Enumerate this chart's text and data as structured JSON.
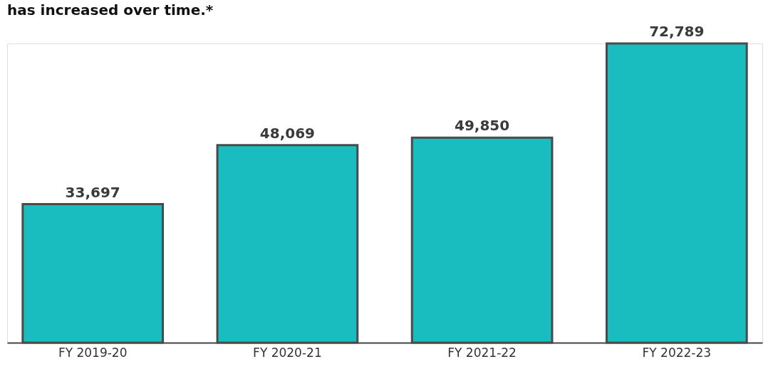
{
  "chart_data": {
    "type": "bar",
    "title": "has increased over time.*",
    "categories": [
      "FY 2019-20",
      "FY 2020-21",
      "FY 2021-22",
      "FY 2022-23"
    ],
    "values": [
      33697,
      48069,
      49850,
      72789
    ],
    "color": "#19bdbf",
    "value_labels": [
      "33,697",
      "48,069",
      "49,850",
      "72,789"
    ]
  }
}
